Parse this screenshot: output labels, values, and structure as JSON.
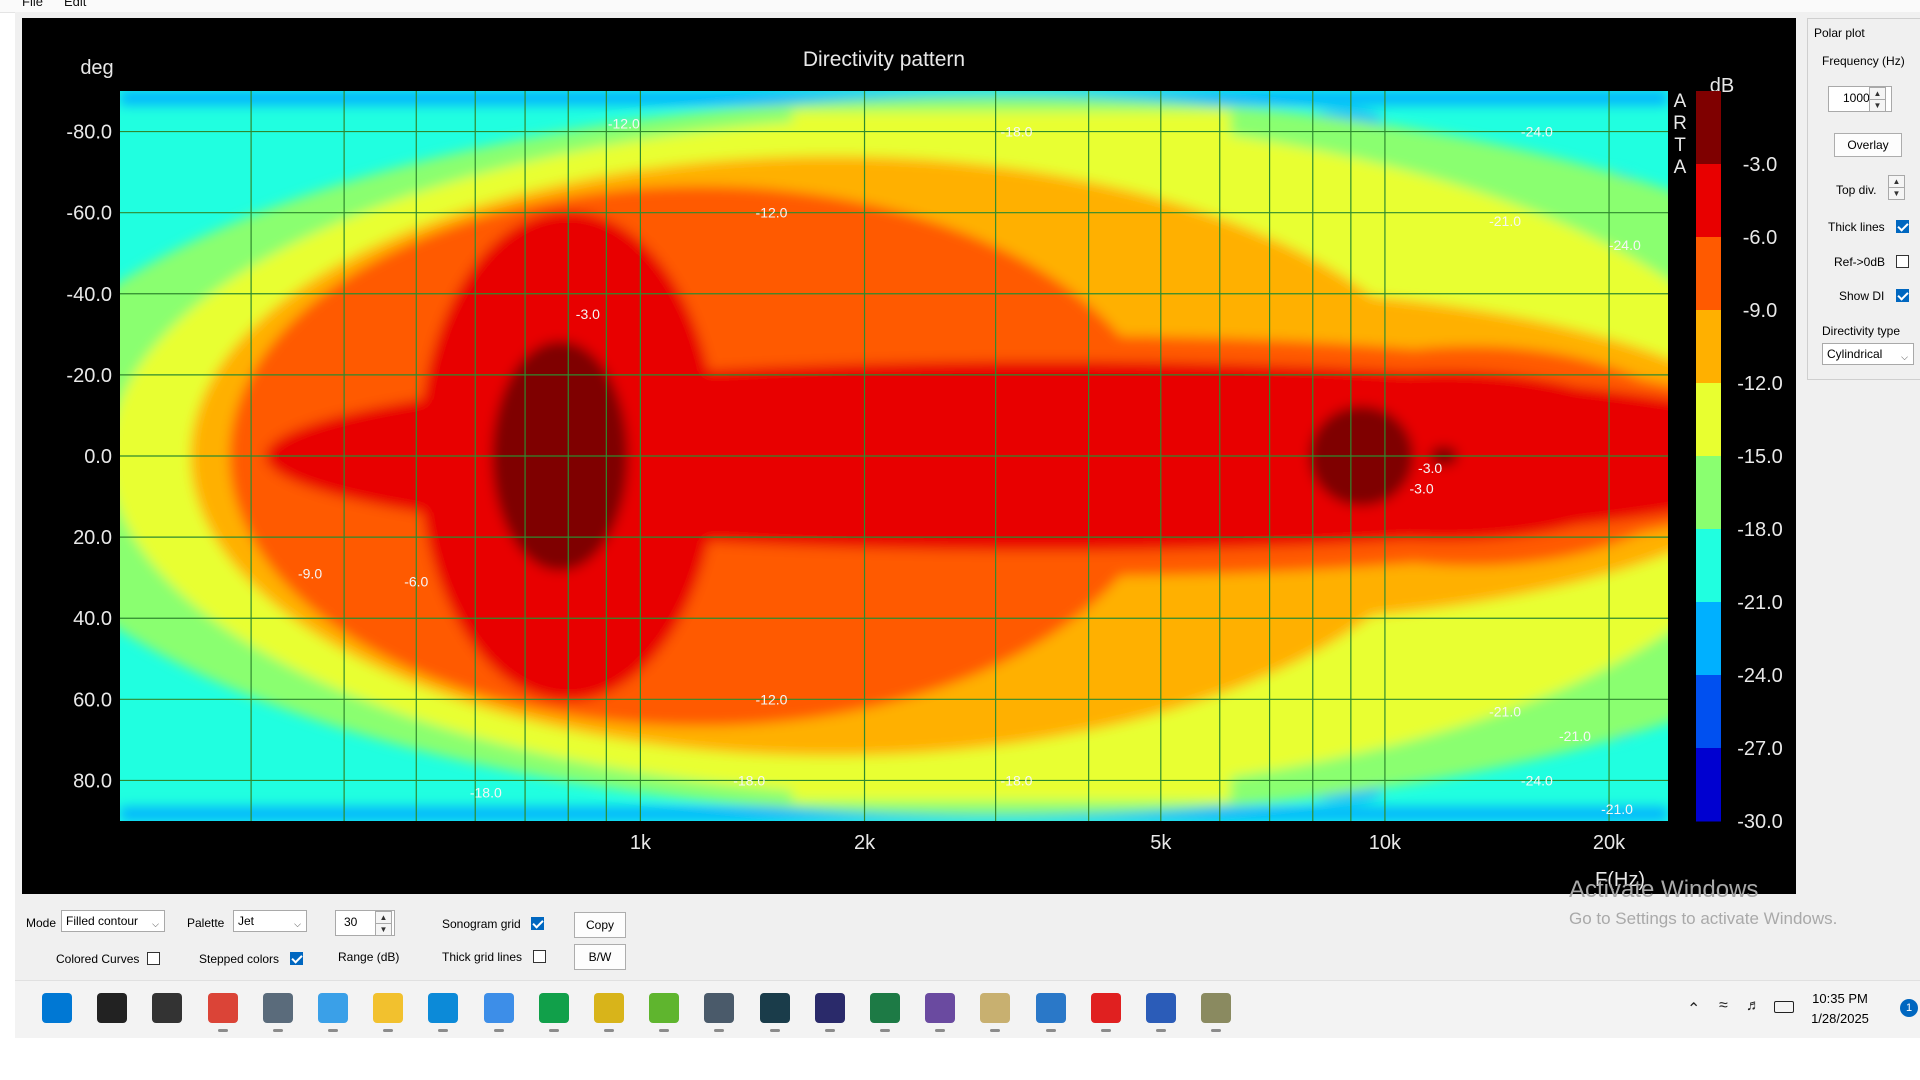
{
  "menu": {
    "file": "File",
    "edit": "Edit"
  },
  "chart_data": {
    "type": "heatmap",
    "title": "Directivity pattern",
    "xlabel": "F(Hz)",
    "ylabel": "deg",
    "x_scale": "log",
    "xlim": [
      200,
      24000
    ],
    "ylim": [
      -90,
      90
    ],
    "x_ticks": [
      1000,
      2000,
      5000,
      10000,
      20000
    ],
    "x_tick_labels": [
      "1k",
      "2k",
      "5k",
      "10k",
      "20k"
    ],
    "y_ticks": [
      -80,
      -60,
      -40,
      -20,
      0,
      20,
      40,
      60,
      80
    ],
    "y_tick_labels": [
      "-80.0",
      "-60.0",
      "-40.0",
      "-20.0",
      "0.0",
      "20.0",
      "40.0",
      "60.0",
      "80.0"
    ],
    "colorbar_unit": "dB",
    "colorbar_levels": [
      -3.0,
      -6.0,
      -9.0,
      -12.0,
      -15.0,
      -18.0,
      -21.0,
      -24.0,
      -27.0,
      -30.0
    ],
    "colorbar_labels": [
      "-3.0",
      "-6.0",
      "-9.0",
      "-12.0",
      "-15.0",
      "-18.0",
      "-21.0",
      "-24.0",
      "-27.0",
      "-30.0"
    ],
    "colorbar_colors": [
      "#7f0000",
      "#e80000",
      "#ff5a00",
      "#ffb000",
      "#e8ff30",
      "#8aff70",
      "#20ffe0",
      "#00b0ff",
      "#0050f0",
      "#0000d0"
    ],
    "side_text": [
      "A",
      "R",
      "T",
      "A"
    ],
    "contour_labels": [
      {
        "text": "-3.0",
        "f": 850,
        "deg": -35
      },
      {
        "text": "-3.0",
        "f": 11500,
        "deg": 3
      },
      {
        "text": "-3.0",
        "f": 11200,
        "deg": 8
      },
      {
        "text": "-6.0",
        "f": 500,
        "deg": 31
      },
      {
        "text": "-9.0",
        "f": 360,
        "deg": 29
      },
      {
        "text": "-12.0",
        "f": 1500,
        "deg": -60
      },
      {
        "text": "-12.0",
        "f": 1500,
        "deg": 60
      },
      {
        "text": "-12.0",
        "f": 950,
        "deg": -82
      },
      {
        "text": "-18.0",
        "f": 3200,
        "deg": -80
      },
      {
        "text": "-18.0",
        "f": 3200,
        "deg": 80
      },
      {
        "text": "-21.0",
        "f": 14500,
        "deg": -58
      },
      {
        "text": "-21.0",
        "f": 14500,
        "deg": 63
      },
      {
        "text": "-21.0",
        "f": 18000,
        "deg": 69
      },
      {
        "text": "-21.0",
        "f": 20500,
        "deg": 87
      },
      {
        "text": "-24.0",
        "f": 16000,
        "deg": -80
      },
      {
        "text": "-24.0",
        "f": 16000,
        "deg": 80
      },
      {
        "text": "-24.0",
        "f": 21000,
        "deg": -52
      },
      {
        "text": "-18.0",
        "f": 1400,
        "deg": 80
      },
      {
        "text": "-18.0",
        "f": 620,
        "deg": 83
      }
    ]
  },
  "panel": {
    "group_title": "Polar plot",
    "frequency_label": "Frequency (Hz)",
    "frequency_value": "1000",
    "overlay_button": "Overlay",
    "top_div_label": "Top div.",
    "thick_lines_label": "Thick lines",
    "thick_lines_checked": true,
    "ref_label": "Ref->0dB",
    "ref_checked": false,
    "show_di_label": "Show DI",
    "show_di_checked": true,
    "directivity_type_label": "Directivity type",
    "directivity_type_value": "Cylindrical"
  },
  "controls": {
    "mode_label": "Mode",
    "mode_value": "Filled contour",
    "palette_label": "Palette",
    "palette_value": "Jet",
    "range_value": "30",
    "range_label": "Range (dB)",
    "sonogram_grid_label": "Sonogram grid",
    "sonogram_grid_checked": true,
    "colored_curves_label": "Colored Curves",
    "colored_curves_checked": false,
    "stepped_colors_label": "Stepped colors",
    "stepped_colors_checked": true,
    "thick_grid_lines_label": "Thick grid lines",
    "thick_grid_lines_checked": false,
    "copy_button": "Copy",
    "bw_button": "B/W"
  },
  "watermark": {
    "line1": "Activate Windows",
    "line2": "Go to Settings to activate Windows."
  },
  "taskbar": {
    "time": "10:35 PM",
    "date": "1/28/2025",
    "notification_count": "1",
    "apps": [
      {
        "name": "start-icon",
        "color": "#0078d4"
      },
      {
        "name": "search-icon",
        "color": "#222222"
      },
      {
        "name": "task-view-icon",
        "color": "#333333"
      },
      {
        "name": "chrome-icon",
        "color": "#db4437"
      },
      {
        "name": "calculator-icon",
        "color": "#5a6b7b"
      },
      {
        "name": "paint-icon",
        "color": "#3aa0e8"
      },
      {
        "name": "file-explorer-icon",
        "color": "#f2c12e"
      },
      {
        "name": "edge-icon",
        "color": "#0c8ad8"
      },
      {
        "name": "notepad-icon",
        "color": "#3d8ee8"
      },
      {
        "name": "sheets-icon",
        "color": "#11a04a"
      },
      {
        "name": "help-icon",
        "color": "#d8b41a"
      },
      {
        "name": "utorrent-icon",
        "color": "#5fb52e"
      },
      {
        "name": "audio-tool-icon",
        "color": "#4a5a6a"
      },
      {
        "name": "oscilloscope-icon",
        "color": "#1a3c4a"
      },
      {
        "name": "rew-icon",
        "color": "#2a2a6a"
      },
      {
        "name": "excel-icon",
        "color": "#1d7a45"
      },
      {
        "name": "speaker-tool-icon",
        "color": "#6a4aa0"
      },
      {
        "name": "notes-icon",
        "color": "#c8b070"
      },
      {
        "name": "photos-icon",
        "color": "#2a78c8"
      },
      {
        "name": "arta-icon",
        "color": "#e02020"
      },
      {
        "name": "word-icon",
        "color": "#2b5cb8"
      },
      {
        "name": "camera-app-icon",
        "color": "#8a8a60"
      }
    ]
  }
}
